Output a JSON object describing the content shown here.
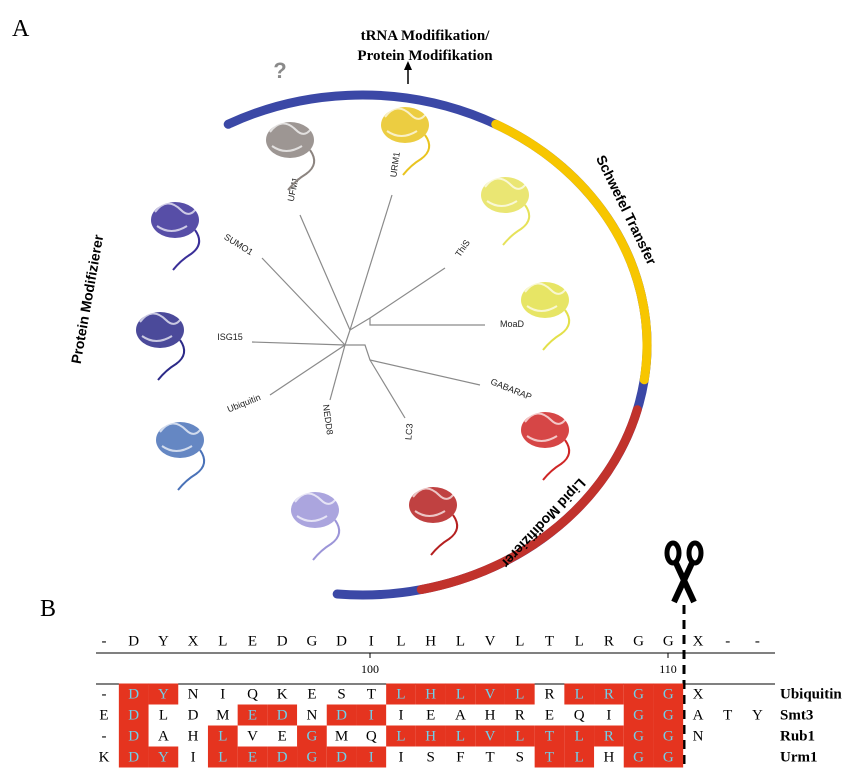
{
  "panel_a": {
    "label": "A",
    "top_annotation": [
      "tRNA Modifikation/",
      "Protein Modifikation"
    ],
    "unknown_mark": "?",
    "groups": [
      {
        "name": "Protein Modifizierer",
        "color": "#3b48a6"
      },
      {
        "name": "Schwefel Transfer",
        "color": "#f7c600"
      },
      {
        "name": "Lipid Modifizierer",
        "color": "#c1322c"
      }
    ],
    "leaves": [
      "UFM1",
      "URM1",
      "ThiS",
      "MoaD",
      "GABARAP",
      "LC3",
      "NEDD8",
      "Ubiquitin",
      "ISG15",
      "SUMO1"
    ]
  },
  "panel_b": {
    "label": "B",
    "consensus": [
      "-",
      "D",
      "Y",
      "X",
      "L",
      "E",
      "D",
      "G",
      "D",
      "I",
      "L",
      "H",
      "L",
      "V",
      "L",
      "T",
      "L",
      "R",
      "G",
      "G",
      "X",
      "-",
      "-"
    ],
    "ruler": [
      "100",
      "110"
    ],
    "highlight_color": "#e5341f",
    "rows": [
      {
        "name": "Ubiquitin",
        "residues": [
          "-",
          "D",
          "Y",
          "N",
          "I",
          "Q",
          "K",
          "E",
          "S",
          "T",
          "L",
          "H",
          "L",
          "V",
          "L",
          "R",
          "L",
          "R",
          "G",
          "G",
          "X"
        ],
        "highlight": [
          1,
          2,
          10,
          11,
          12,
          13,
          14,
          16,
          17,
          18,
          19
        ]
      },
      {
        "name": "Smt3",
        "residues": [
          "E",
          "D",
          "L",
          "D",
          "M",
          "E",
          "D",
          "N",
          "D",
          "I",
          "I",
          "E",
          "A",
          "H",
          "R",
          "E",
          "Q",
          "I",
          "G",
          "G",
          "A",
          "T",
          "Y"
        ],
        "highlight": [
          1,
          5,
          6,
          8,
          9,
          18,
          19
        ]
      },
      {
        "name": "Rub1",
        "residues": [
          "-",
          "D",
          "A",
          "H",
          "L",
          "V",
          "E",
          "G",
          "M",
          "Q",
          "L",
          "H",
          "L",
          "V",
          "L",
          "T",
          "L",
          "R",
          "G",
          "G",
          "N"
        ],
        "highlight": [
          1,
          4,
          7,
          10,
          11,
          12,
          13,
          14,
          15,
          16,
          17,
          18,
          19
        ]
      },
      {
        "name": "Urm1",
        "residues": [
          "K",
          "D",
          "Y",
          "I",
          "L",
          "E",
          "D",
          "G",
          "D",
          "I",
          "I",
          "S",
          "F",
          "T",
          "S",
          "T",
          "L",
          "H",
          "G",
          "G"
        ],
        "highlight": [
          1,
          2,
          4,
          5,
          6,
          7,
          8,
          9,
          15,
          16,
          18,
          19
        ]
      }
    ]
  }
}
